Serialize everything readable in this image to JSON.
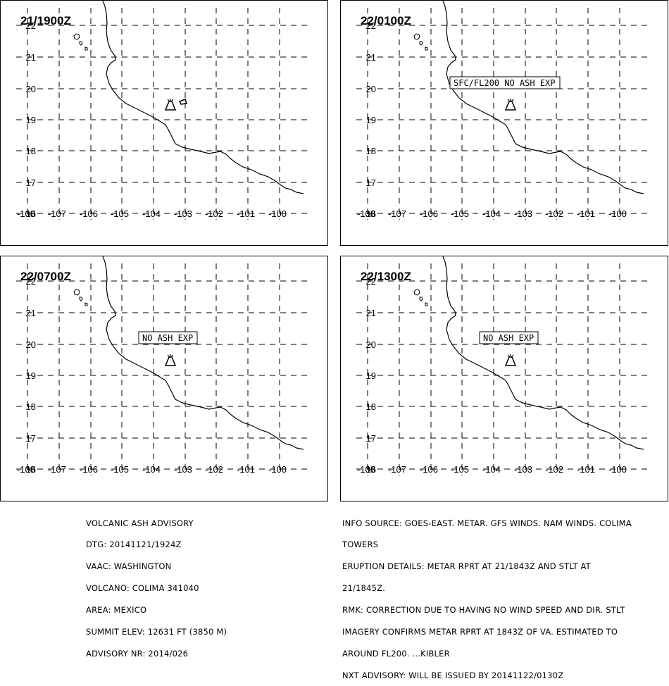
{
  "panels": [
    {
      "time_label": "21/1900Z",
      "ash_box": null
    },
    {
      "time_label": "22/0100Z",
      "ash_box": "SFC/FL200 NO ASH EXP"
    },
    {
      "time_label": "22/0700Z",
      "ash_box": "NO ASH EXP"
    },
    {
      "time_label": "22/1300Z",
      "ash_box": "NO ASH EXP"
    }
  ],
  "map": {
    "lat_labels": [
      "22",
      "21",
      "20",
      "19",
      "18",
      "17",
      "16"
    ],
    "lon_labels": [
      "-108",
      "-107",
      "-106",
      "-105",
      "-104",
      "-103",
      "-102",
      "-101",
      "-100"
    ],
    "volcano_icon": "volcano-icon",
    "grid_style": "dashed",
    "line_color": "#000000"
  },
  "advisory": {
    "lines": [
      "VOLCANIC ASH ADVISORY",
      "DTG: 20141121/1924Z",
      "VAAC: WASHINGTON",
      "VOLCANO: COLIMA 341040",
      "AREA: MEXICO",
      "SUMMIT ELEV: 12631 FT (3850 M)",
      "ADVISORY NR: 2014/026"
    ]
  },
  "details": {
    "lines": [
      "INFO SOURCE: GOES-EAST. METAR. GFS WINDS. NAM WINDS. COLIMA",
      "TOWERS",
      "ERUPTION DETAILS: METAR RPRT AT 21/1843Z AND STLT AT",
      "21/1845Z.",
      "RMK: CORRECTION DUE TO HAVING NO WIND SPEED AND DIR. STLT",
      "IMAGERY CONFIRMS METAR RPRT AT 1843Z OF VA. ESTIMATED TO",
      "AROUND FL200. ...KIBLER",
      "NXT ADVISORY: WILL BE ISSUED BY 20141122/0130Z"
    ]
  }
}
